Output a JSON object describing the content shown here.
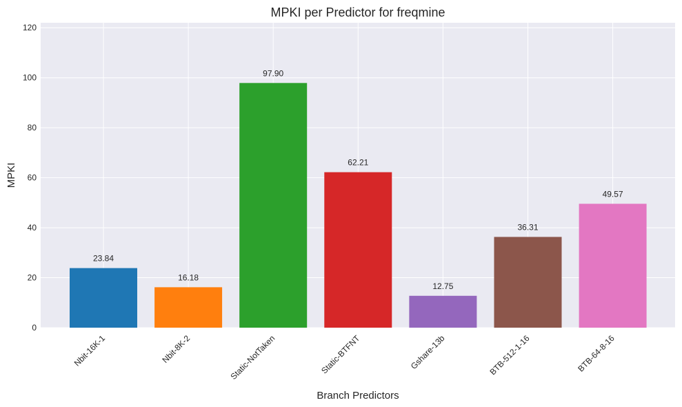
{
  "chart_data": {
    "type": "bar",
    "title": "MPKI per Predictor for freqmine",
    "xlabel": "Branch Predictors",
    "ylabel": "MPKI",
    "categories": [
      "Nbit-16K-1",
      "Nbit-8K-2",
      "Static-NotTaken",
      "Static-BTFNT",
      "Gshare-13b",
      "BTB-512-1-16",
      "BTB-64-8-16"
    ],
    "values": [
      23.84,
      16.18,
      97.9,
      62.21,
      12.75,
      36.31,
      49.57
    ],
    "value_labels": [
      "23.84",
      "16.18",
      "97.90",
      "62.21",
      "12.75",
      "36.31",
      "49.57"
    ],
    "colors": [
      "#1f77b4",
      "#ff7f0e",
      "#2ca02c",
      "#d62728",
      "#9467bd",
      "#8c564b",
      "#e377c2"
    ],
    "ylim": [
      0,
      122
    ],
    "yticks": [
      0,
      20,
      40,
      60,
      80,
      100,
      120
    ],
    "grid": true,
    "background": "#eaeaf2"
  }
}
